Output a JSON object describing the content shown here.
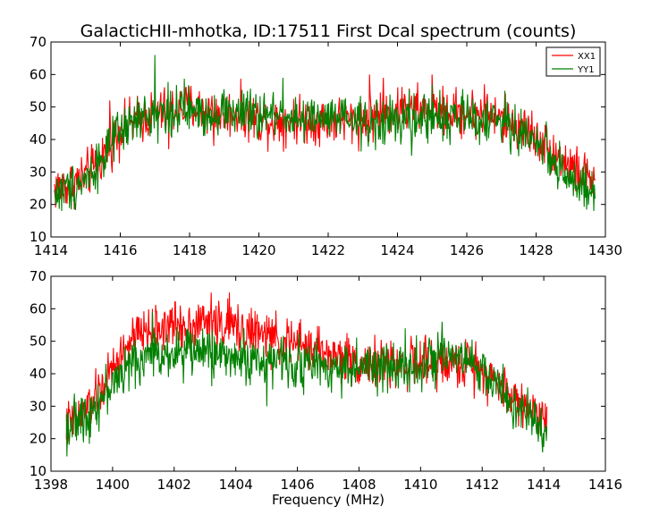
{
  "title": "GalacticHII-mhotka, ID:17511 First Dcal spectrum (counts)",
  "colors": {
    "xx1": "#ff0000",
    "yy1": "#008000",
    "axes": "#000000",
    "background": "#ffffff"
  },
  "chart_data": [
    {
      "type": "line",
      "title": "GalacticHII-mhotka, ID:17511 First Dcal spectrum (counts)",
      "xlabel": "",
      "ylabel": "",
      "xlim": [
        1414,
        1430
      ],
      "ylim": [
        10,
        70
      ],
      "xticks": [
        "1414",
        "1416",
        "1418",
        "1420",
        "1422",
        "1424",
        "1426",
        "1428",
        "1430"
      ],
      "yticks": [
        "10",
        "20",
        "30",
        "40",
        "50",
        "60",
        "70"
      ],
      "grid": false,
      "legend": "top-right",
      "x_range": [
        1414.1,
        1429.7
      ],
      "series": [
        {
          "name": "XX1",
          "color": "#ff0000",
          "envelope": [
            [
              1414.1,
              25
            ],
            [
              1414.5,
              26
            ],
            [
              1415.0,
              29
            ],
            [
              1415.3,
              32
            ],
            [
              1415.6,
              37
            ],
            [
              1416.0,
              43
            ],
            [
              1416.5,
              46
            ],
            [
              1417.0,
              48
            ],
            [
              1417.5,
              49
            ],
            [
              1418.0,
              50
            ],
            [
              1418.5,
              49
            ],
            [
              1419.0,
              48
            ],
            [
              1419.5,
              48
            ],
            [
              1420.0,
              46
            ],
            [
              1420.5,
              46
            ],
            [
              1421.0,
              46
            ],
            [
              1421.5,
              46
            ],
            [
              1422.0,
              46
            ],
            [
              1422.5,
              46
            ],
            [
              1423.0,
              46
            ],
            [
              1423.5,
              48
            ],
            [
              1424.0,
              49
            ],
            [
              1424.5,
              49
            ],
            [
              1425.0,
              49
            ],
            [
              1425.5,
              48
            ],
            [
              1426.0,
              48
            ],
            [
              1426.5,
              48
            ],
            [
              1427.0,
              46
            ],
            [
              1427.5,
              44
            ],
            [
              1428.0,
              41
            ],
            [
              1428.5,
              36
            ],
            [
              1429.0,
              32
            ],
            [
              1429.3,
              29
            ],
            [
              1429.7,
              27
            ]
          ],
          "noise": 5.5,
          "spikes": [
            [
              1415.7,
              52
            ],
            [
              1417.4,
              37
            ],
            [
              1418.7,
              38
            ],
            [
              1423.2,
              60
            ],
            [
              1423.6,
              59
            ],
            [
              1424.2,
              54
            ],
            [
              1425.0,
              60
            ],
            [
              1426.5,
              57
            ]
          ]
        },
        {
          "name": "YY1",
          "color": "#008000",
          "envelope": [
            [
              1414.1,
              23
            ],
            [
              1414.5,
              25
            ],
            [
              1415.0,
              28
            ],
            [
              1415.3,
              32
            ],
            [
              1415.6,
              36
            ],
            [
              1416.0,
              42
            ],
            [
              1416.5,
              46
            ],
            [
              1417.0,
              48
            ],
            [
              1417.5,
              49
            ],
            [
              1418.0,
              49
            ],
            [
              1418.5,
              48
            ],
            [
              1419.0,
              49
            ],
            [
              1419.5,
              48
            ],
            [
              1420.0,
              47
            ],
            [
              1420.5,
              48
            ],
            [
              1421.0,
              47
            ],
            [
              1421.5,
              46
            ],
            [
              1422.0,
              46
            ],
            [
              1422.5,
              46
            ],
            [
              1423.0,
              45
            ],
            [
              1423.5,
              45
            ],
            [
              1424.0,
              46
            ],
            [
              1424.5,
              46
            ],
            [
              1425.0,
              47
            ],
            [
              1425.5,
              47
            ],
            [
              1426.0,
              47
            ],
            [
              1426.5,
              46
            ],
            [
              1427.0,
              45
            ],
            [
              1427.5,
              42
            ],
            [
              1428.0,
              40
            ],
            [
              1428.5,
              34
            ],
            [
              1429.0,
              28
            ],
            [
              1429.3,
              24
            ],
            [
              1429.7,
              23
            ]
          ],
          "noise": 5.5,
          "spikes": [
            [
              1414.3,
              18
            ],
            [
              1417.0,
              66
            ],
            [
              1417.4,
              42
            ],
            [
              1420.7,
              59
            ],
            [
              1421.3,
              39
            ],
            [
              1424.4,
              35
            ],
            [
              1425.0,
              57
            ],
            [
              1427.1,
              55
            ]
          ]
        }
      ]
    },
    {
      "type": "line",
      "title": "",
      "xlabel": "Frequency (MHz)",
      "ylabel": "",
      "xlim": [
        1398,
        1416
      ],
      "ylim": [
        10,
        70
      ],
      "xticks": [
        "1398",
        "1400",
        "1402",
        "1404",
        "1406",
        "1408",
        "1410",
        "1412",
        "1414",
        "1416"
      ],
      "yticks": [
        "10",
        "20",
        "30",
        "40",
        "50",
        "60",
        "70"
      ],
      "grid": false,
      "legend": "none",
      "x_range": [
        1398.5,
        1414.1
      ],
      "series": [
        {
          "name": "XX1",
          "color": "#ff0000",
          "envelope": [
            [
              1398.5,
              24
            ],
            [
              1399.0,
              27
            ],
            [
              1399.5,
              33
            ],
            [
              1400.0,
              41
            ],
            [
              1400.5,
              49
            ],
            [
              1401.0,
              53
            ],
            [
              1401.5,
              54
            ],
            [
              1402.0,
              55
            ],
            [
              1402.5,
              55
            ],
            [
              1403.0,
              56
            ],
            [
              1403.5,
              55
            ],
            [
              1404.0,
              54
            ],
            [
              1404.5,
              53
            ],
            [
              1405.0,
              51
            ],
            [
              1405.5,
              50
            ],
            [
              1406.0,
              49
            ],
            [
              1406.5,
              48
            ],
            [
              1407.0,
              46
            ],
            [
              1407.5,
              45
            ],
            [
              1408.0,
              44
            ],
            [
              1408.5,
              43
            ],
            [
              1409.0,
              43
            ],
            [
              1409.5,
              43
            ],
            [
              1410.0,
              43
            ],
            [
              1410.5,
              43
            ],
            [
              1411.0,
              43
            ],
            [
              1411.5,
              43
            ],
            [
              1412.0,
              42
            ],
            [
              1412.5,
              37
            ],
            [
              1413.0,
              33
            ],
            [
              1413.5,
              29
            ],
            [
              1414.1,
              27
            ]
          ],
          "noise": 5.5,
          "spikes": [
            [
              1401.3,
              60
            ],
            [
              1402.2,
              61
            ],
            [
              1403.2,
              65
            ],
            [
              1403.8,
              65
            ],
            [
              1405.0,
              58
            ],
            [
              1410.2,
              37
            ],
            [
              1411.8,
              50
            ]
          ]
        },
        {
          "name": "YY1",
          "color": "#008000",
          "envelope": [
            [
              1398.5,
              24
            ],
            [
              1399.0,
              26
            ],
            [
              1399.5,
              31
            ],
            [
              1400.0,
              37
            ],
            [
              1400.5,
              42
            ],
            [
              1401.0,
              45
            ],
            [
              1401.5,
              46
            ],
            [
              1402.0,
              47
            ],
            [
              1402.5,
              47
            ],
            [
              1403.0,
              47
            ],
            [
              1403.5,
              46
            ],
            [
              1404.0,
              45
            ],
            [
              1404.5,
              44
            ],
            [
              1405.0,
              44
            ],
            [
              1405.5,
              44
            ],
            [
              1406.0,
              43
            ],
            [
              1406.5,
              43
            ],
            [
              1407.0,
              42
            ],
            [
              1407.5,
              42
            ],
            [
              1408.0,
              42
            ],
            [
              1408.5,
              42
            ],
            [
              1409.0,
              42
            ],
            [
              1409.5,
              43
            ],
            [
              1410.0,
              43
            ],
            [
              1410.5,
              44
            ],
            [
              1411.0,
              44
            ],
            [
              1411.5,
              44
            ],
            [
              1412.0,
              41
            ],
            [
              1412.5,
              36
            ],
            [
              1413.0,
              31
            ],
            [
              1413.5,
              26
            ],
            [
              1414.1,
              23
            ]
          ],
          "noise": 5.5,
          "spikes": [
            [
              1398.6,
              20
            ],
            [
              1401.3,
              59
            ],
            [
              1402.3,
              37
            ],
            [
              1405.0,
              30
            ],
            [
              1408.6,
              33
            ],
            [
              1409.5,
              54
            ],
            [
              1410.7,
              56
            ]
          ]
        }
      ]
    }
  ]
}
